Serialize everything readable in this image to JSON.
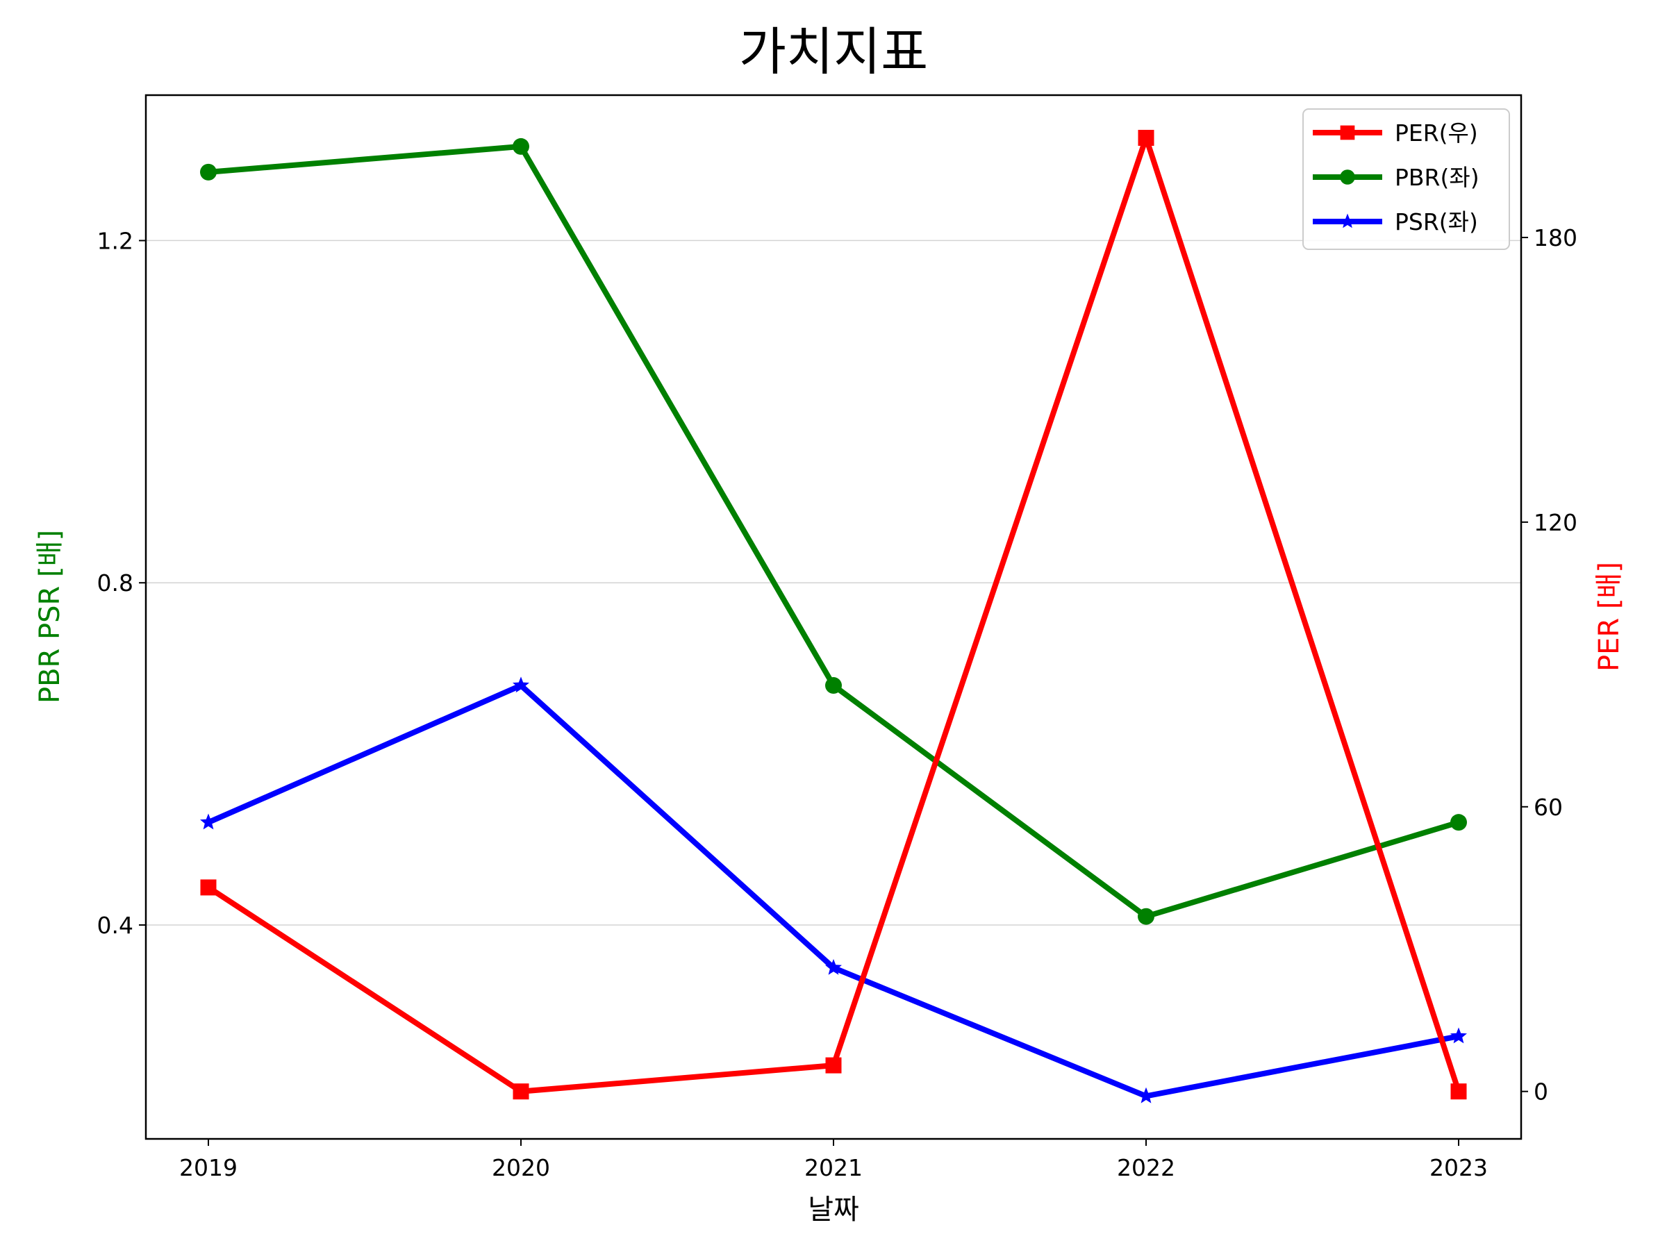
{
  "chart_data": {
    "type": "line",
    "title": "가치지표",
    "xlabel": "날짜",
    "ylabel_left": "PBR PSR [배]",
    "ylabel_right": "PER [배]",
    "categories": [
      "2019",
      "2020",
      "2021",
      "2022",
      "2023"
    ],
    "left_axis": {
      "ylim": [
        0.15,
        1.37
      ],
      "ticks": [
        0.4,
        0.8,
        1.2
      ],
      "tick_labels": [
        "0.4",
        "0.8",
        "1.2"
      ],
      "grid": true
    },
    "right_axis": {
      "ylim": [
        -10,
        210
      ],
      "ticks": [
        0,
        60,
        120,
        180
      ],
      "tick_labels": [
        "0",
        "60",
        "120",
        "180"
      ]
    },
    "series": [
      {
        "name": "PER(우)",
        "axis": "right",
        "color": "#ff0000",
        "marker": "square",
        "values": [
          43,
          0,
          5.5,
          201,
          0
        ]
      },
      {
        "name": "PBR(좌)",
        "axis": "left",
        "color": "#008000",
        "marker": "circle",
        "values": [
          1.28,
          1.31,
          0.68,
          0.41,
          0.52
        ]
      },
      {
        "name": "PSR(좌)",
        "axis": "left",
        "color": "#0000ff",
        "marker": "star",
        "values": [
          0.52,
          0.68,
          0.35,
          0.2,
          0.27
        ]
      }
    ],
    "legend_position": "upper right",
    "colors": {
      "left_label": "#008000",
      "right_label": "#ff0000",
      "grid": "#d3d3d3"
    }
  }
}
